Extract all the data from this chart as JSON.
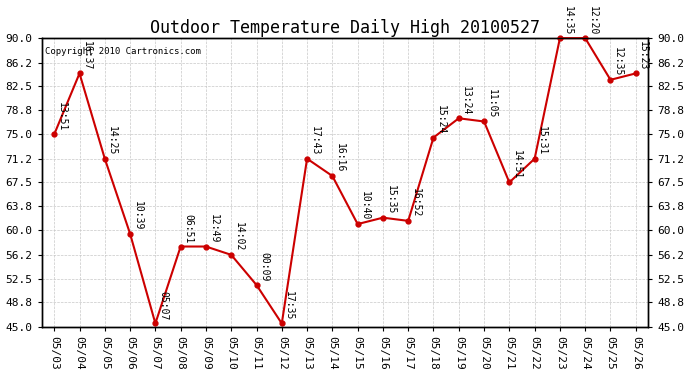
{
  "title": "Outdoor Temperature Daily High 20100527",
  "copyright": "Copyright 2010 Cartronics.com",
  "dates": [
    "05/03",
    "05/04",
    "05/05",
    "05/06",
    "05/07",
    "05/08",
    "05/09",
    "05/10",
    "05/11",
    "05/12",
    "05/13",
    "05/14",
    "05/15",
    "05/16",
    "05/17",
    "05/18",
    "05/19",
    "05/20",
    "05/21",
    "05/22",
    "05/23",
    "05/24",
    "05/25",
    "05/26"
  ],
  "values": [
    75.0,
    84.5,
    71.2,
    59.5,
    45.5,
    57.5,
    57.5,
    56.2,
    51.5,
    45.5,
    71.2,
    68.5,
    61.0,
    62.0,
    61.5,
    74.5,
    77.5,
    77.0,
    67.5,
    71.2,
    90.0,
    90.0,
    83.5,
    84.5
  ],
  "labels": [
    "13:51",
    "16:37",
    "14:25",
    "10:39",
    "05:07",
    "06:51",
    "12:49",
    "14:02",
    "00:09",
    "17:35",
    "17:43",
    "16:16",
    "10:40",
    "15:35",
    "16:52",
    "15:24",
    "13:24",
    "11:05",
    "14:51",
    "15:31",
    "14:35",
    "12:20",
    "12:35",
    "15:23"
  ],
  "line_color": "#cc0000",
  "marker_color": "#cc0000",
  "bg_color": "#ffffff",
  "grid_color": "#c8c8c8",
  "yticks": [
    45.0,
    48.8,
    52.5,
    56.2,
    60.0,
    63.8,
    67.5,
    71.2,
    75.0,
    78.8,
    82.5,
    86.2,
    90.0
  ],
  "ylim_min": 45.0,
  "ylim_max": 90.0,
  "title_fontsize": 12,
  "label_fontsize": 7,
  "axis_fontsize": 8
}
